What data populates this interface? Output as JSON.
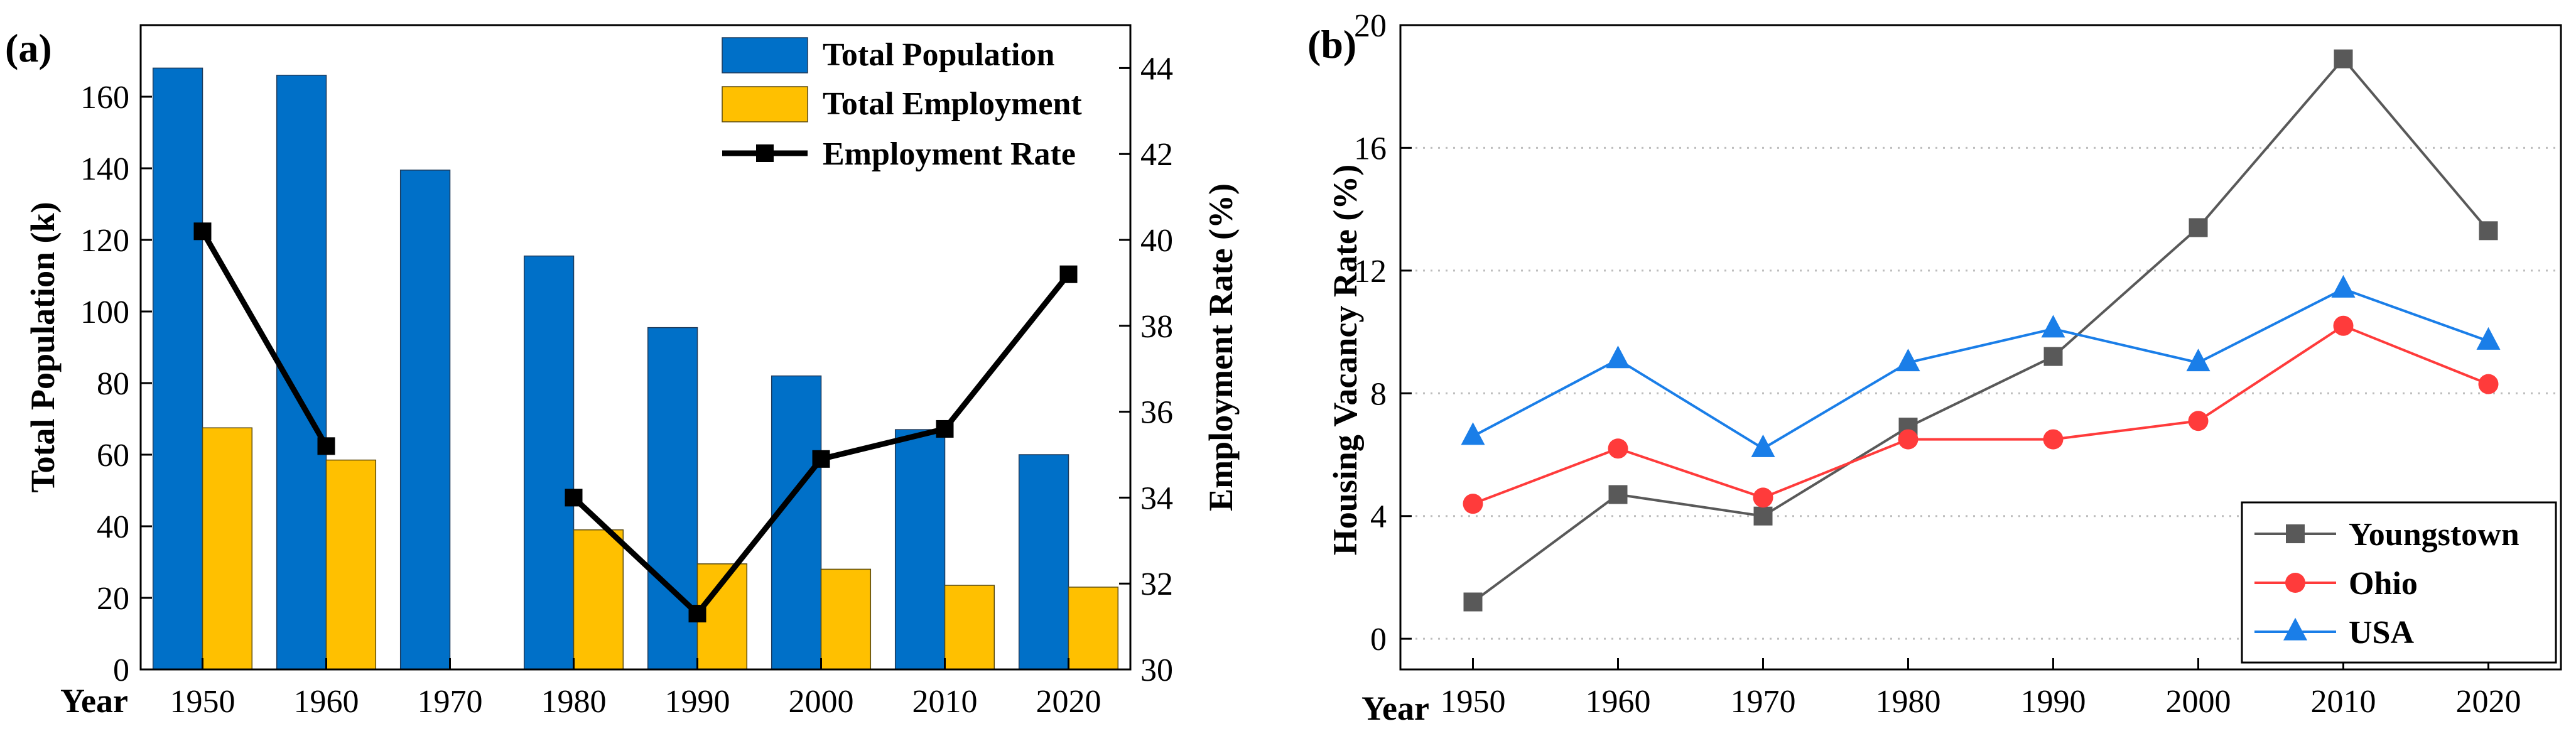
{
  "colors": {
    "population": "#0070c8",
    "employment": "#ffc000",
    "rate": "#000000",
    "youngstown": "#595959",
    "ohio": "#ff3b3b",
    "usa": "#1a7ee8"
  },
  "chart_data": [
    {
      "panel": "(a)",
      "type": "bar",
      "xlabel": "Year",
      "categories": [
        "1950",
        "1960",
        "1970",
        "1980",
        "1990",
        "2000",
        "2010",
        "2020"
      ],
      "ylabel": "Total Population (k)",
      "ylim": [
        0,
        180
      ],
      "yticks": [
        0,
        20,
        40,
        60,
        80,
        100,
        120,
        140,
        160
      ],
      "y2label": "Employment Rate (%)",
      "y2lim": [
        30,
        45
      ],
      "y2ticks": [
        30,
        32,
        34,
        36,
        38,
        40,
        42,
        44
      ],
      "legend_position": "top-right",
      "series": [
        {
          "name": "Total Population",
          "kind": "bar",
          "axis": "left",
          "values": [
            168,
            166,
            139.5,
            115.5,
            95.5,
            82,
            67,
            60
          ]
        },
        {
          "name": "Total Employment",
          "kind": "bar",
          "axis": "left",
          "values": [
            67.5,
            58.5,
            null,
            39,
            29.5,
            28,
            23.5,
            23
          ]
        },
        {
          "name": "Employment Rate",
          "kind": "line",
          "axis": "right",
          "values": [
            40.2,
            35.2,
            null,
            34.0,
            31.3,
            34.9,
            35.6,
            39.2
          ]
        }
      ]
    },
    {
      "panel": "(b)",
      "type": "line",
      "xlabel": "Year",
      "categories": [
        "1950",
        "1960",
        "1970",
        "1980",
        "1990",
        "2000",
        "2010",
        "2020"
      ],
      "ylabel": "Housing Vacancy Rate (%)",
      "ylim": [
        -1,
        20
      ],
      "yticks": [
        0,
        4,
        8,
        12,
        16,
        20
      ],
      "grid": "horizontal dotted",
      "legend_position": "bottom-right",
      "series": [
        {
          "name": "Youngstown",
          "marker": "square",
          "values": [
            1.2,
            4.7,
            4.0,
            6.9,
            9.2,
            13.4,
            18.9,
            13.3
          ]
        },
        {
          "name": "Ohio",
          "marker": "circle",
          "values": [
            4.4,
            6.2,
            4.6,
            6.5,
            6.5,
            7.1,
            10.2,
            8.3
          ]
        },
        {
          "name": "USA",
          "marker": "triangle",
          "values": [
            6.6,
            9.1,
            6.2,
            9.0,
            10.1,
            9.0,
            11.4,
            9.7
          ]
        }
      ]
    }
  ]
}
